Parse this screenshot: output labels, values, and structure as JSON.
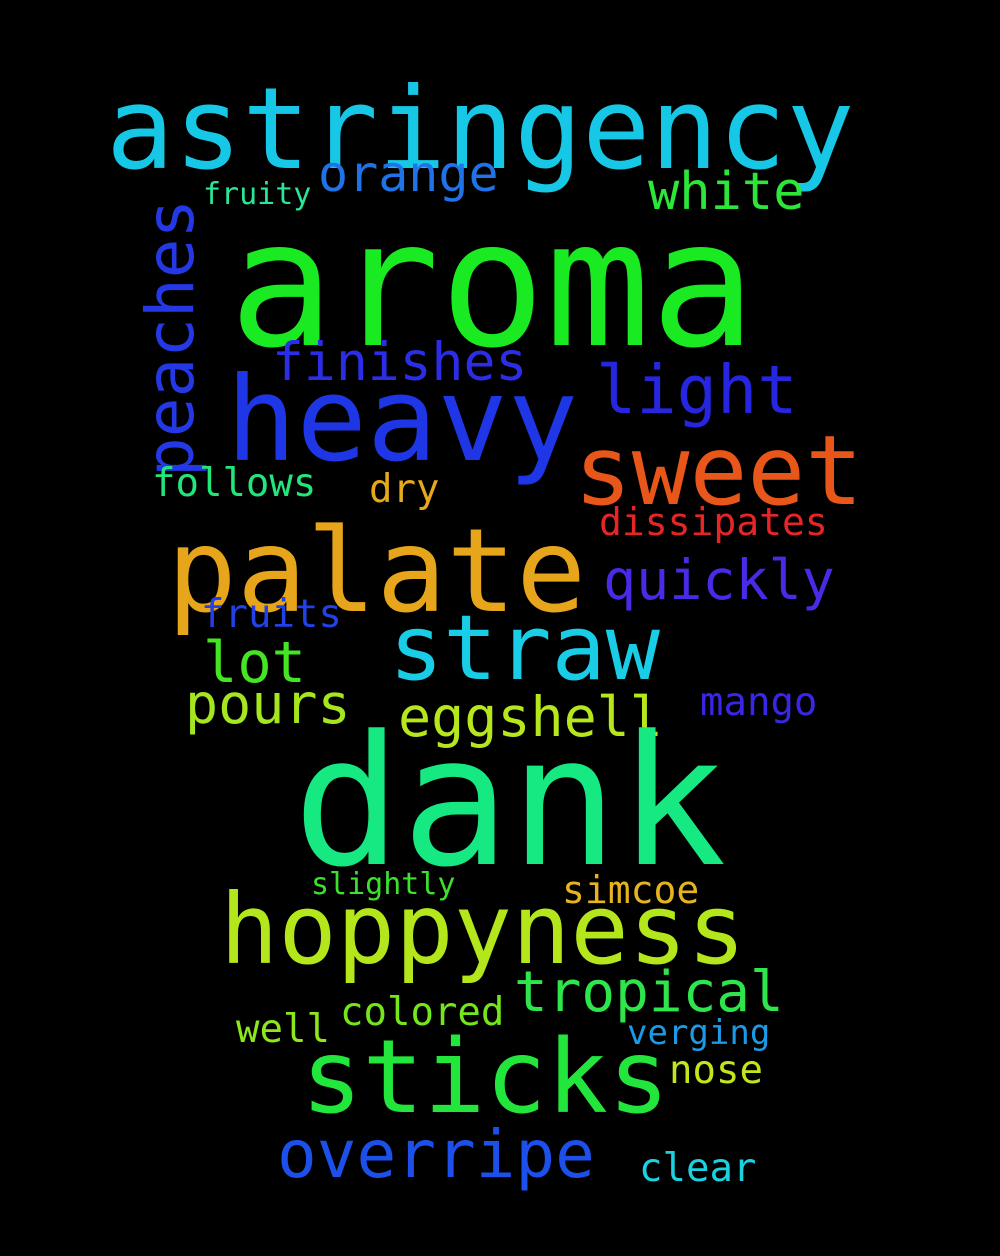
{
  "word_cloud": {
    "background_color": "#000000",
    "words": {
      "aroma": {
        "text": "aroma",
        "color": "#19ea22"
      },
      "dank": {
        "text": "dank",
        "color": "#16e882"
      },
      "astringency": {
        "text": "astringency",
        "color": "#17c8e6"
      },
      "heavy": {
        "text": "heavy",
        "color": "#1f36e6"
      },
      "palate": {
        "text": "palate",
        "color": "#e6a51a"
      },
      "hoppyness": {
        "text": "hoppyness",
        "color": "#b4e61c"
      },
      "straw": {
        "text": "straw",
        "color": "#19cde6"
      },
      "sticks": {
        "text": "sticks",
        "color": "#22e63c"
      },
      "sweet": {
        "text": "sweet",
        "color": "#e9561a"
      },
      "overripe": {
        "text": "overripe",
        "color": "#1d50ea"
      },
      "peaches": {
        "text": "peaches",
        "color": "#2438e6"
      },
      "light": {
        "text": "light",
        "color": "#2626e0"
      },
      "orange": {
        "text": "orange",
        "color": "#1f73e6"
      },
      "white": {
        "text": "white",
        "color": "#2de63a"
      },
      "finishes": {
        "text": "finishes",
        "color": "#2b2ee6"
      },
      "quickly": {
        "text": "quickly",
        "color": "#4a2ae6"
      },
      "tropical": {
        "text": "tropical",
        "color": "#2ee64c"
      },
      "eggshell": {
        "text": "eggshell",
        "color": "#b6e61c"
      },
      "pours": {
        "text": "pours",
        "color": "#a6e61e"
      },
      "lot": {
        "text": "lot",
        "color": "#44e624"
      },
      "dissipates": {
        "text": "dissipates",
        "color": "#e62626"
      },
      "follows": {
        "text": "follows",
        "color": "#22e67a"
      },
      "dry": {
        "text": "dry",
        "color": "#e6a81c"
      },
      "fruits": {
        "text": "fruits",
        "color": "#2241e6"
      },
      "mango": {
        "text": "mango",
        "color": "#3a26e6"
      },
      "simcoe": {
        "text": "simcoe",
        "color": "#e6b41c"
      },
      "slightly": {
        "text": "slightly",
        "color": "#3ee02e"
      },
      "colored": {
        "text": "colored",
        "color": "#74e61c"
      },
      "well": {
        "text": "well",
        "color": "#8ee61c"
      },
      "verging": {
        "text": "verging",
        "color": "#1c9ae6"
      },
      "nose": {
        "text": "nose",
        "color": "#c2e61c"
      },
      "clear": {
        "text": "clear",
        "color": "#1cd2e0"
      },
      "fruity": {
        "text": "fruity",
        "color": "#2ae696"
      }
    }
  }
}
